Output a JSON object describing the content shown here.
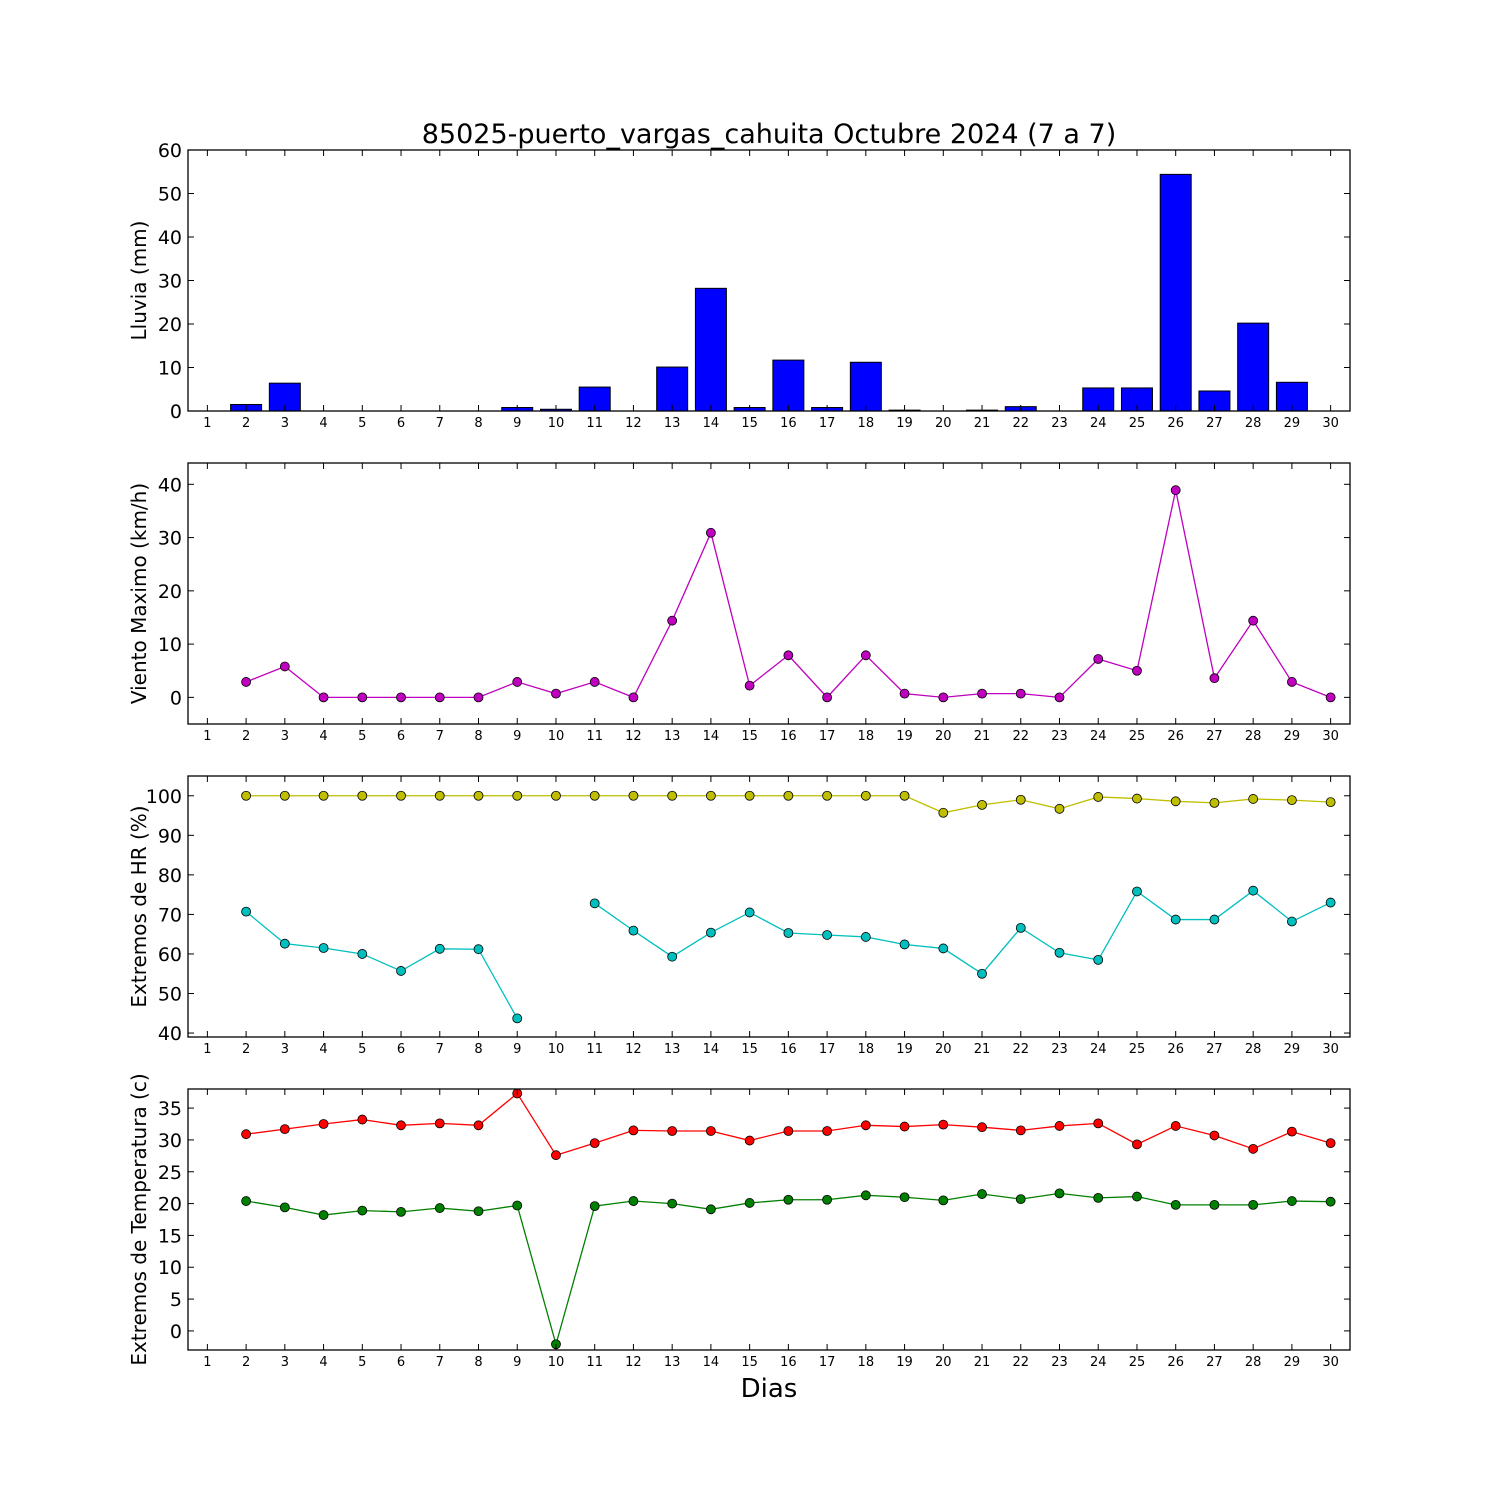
{
  "figure": {
    "title": "85025-puerto_vargas_cahuita Octubre 2024  (7 a 7)",
    "xlabel": "Dias"
  },
  "chart_data": [
    {
      "type": "bar",
      "ylabel": "Lluvia (mm)",
      "ylim": [
        0,
        60
      ],
      "yticks": [
        0,
        10,
        20,
        30,
        40,
        50,
        60
      ],
      "grid": false,
      "categories": [
        1,
        2,
        3,
        4,
        5,
        6,
        7,
        8,
        9,
        10,
        11,
        12,
        13,
        14,
        15,
        16,
        17,
        18,
        19,
        20,
        21,
        22,
        23,
        24,
        25,
        26,
        27,
        28,
        29,
        30
      ],
      "color": "#0000ff",
      "values": [
        0,
        1.5,
        6.4,
        0,
        0,
        0,
        0,
        0,
        0.8,
        0.4,
        5.5,
        0,
        10.1,
        28.2,
        0.8,
        11.7,
        0.8,
        11.2,
        0.2,
        0,
        0.2,
        1.0,
        0,
        5.3,
        5.3,
        54.4,
        4.6,
        20.2,
        6.6,
        0
      ]
    },
    {
      "type": "line",
      "ylabel": "Viento Maximo (km/h)",
      "ylim": [
        -5,
        44
      ],
      "yticks": [
        0,
        10,
        20,
        30,
        40
      ],
      "grid": false,
      "x": [
        1,
        2,
        3,
        4,
        5,
        6,
        7,
        8,
        9,
        10,
        11,
        12,
        13,
        14,
        15,
        16,
        17,
        18,
        19,
        20,
        21,
        22,
        23,
        24,
        25,
        26,
        27,
        28,
        29,
        30
      ],
      "series": [
        {
          "color": "#bf00bf",
          "values": [
            null,
            2.9,
            5.8,
            0,
            0,
            0,
            0,
            0,
            2.9,
            0.7,
            2.9,
            0,
            14.4,
            30.9,
            2.2,
            7.9,
            0,
            7.9,
            0.7,
            0,
            0.7,
            0.7,
            0,
            7.2,
            5.0,
            38.9,
            3.6,
            14.4,
            2.9,
            0
          ]
        }
      ]
    },
    {
      "type": "line",
      "ylabel": "Extremos de HR (%)",
      "ylim": [
        39,
        105
      ],
      "yticks": [
        40,
        50,
        60,
        70,
        80,
        90,
        100
      ],
      "grid": false,
      "x": [
        1,
        2,
        3,
        4,
        5,
        6,
        7,
        8,
        9,
        10,
        11,
        12,
        13,
        14,
        15,
        16,
        17,
        18,
        19,
        20,
        21,
        22,
        23,
        24,
        25,
        26,
        27,
        28,
        29,
        30
      ],
      "series": [
        {
          "color": "#bfbf00",
          "values": [
            null,
            100,
            100,
            100,
            100,
            100,
            100,
            100,
            100,
            100,
            100,
            100,
            100,
            100,
            100,
            100,
            100,
            100,
            100,
            95.7,
            97.7,
            99.0,
            96.7,
            99.7,
            99.3,
            98.6,
            98.2,
            99.2,
            98.9,
            98.4
          ]
        },
        {
          "color": "#00bfbf",
          "values": [
            null,
            70.7,
            62.6,
            61.5,
            60.0,
            55.7,
            61.3,
            61.2,
            43.7,
            null,
            72.8,
            65.9,
            59.3,
            65.4,
            70.5,
            65.3,
            64.8,
            64.3,
            62.4,
            61.4,
            55.0,
            66.6,
            60.3,
            58.5,
            75.8,
            68.7,
            68.7,
            76.0,
            68.2,
            73.0
          ]
        }
      ]
    },
    {
      "type": "line",
      "ylabel": "Extremos de Temperatura (c)",
      "ylim": [
        -3,
        38
      ],
      "yticks": [
        0,
        5,
        10,
        15,
        20,
        25,
        30,
        35
      ],
      "grid": false,
      "x": [
        1,
        2,
        3,
        4,
        5,
        6,
        7,
        8,
        9,
        10,
        11,
        12,
        13,
        14,
        15,
        16,
        17,
        18,
        19,
        20,
        21,
        22,
        23,
        24,
        25,
        26,
        27,
        28,
        29,
        30
      ],
      "series": [
        {
          "color": "#ff0000",
          "values": [
            null,
            30.9,
            31.7,
            32.5,
            33.2,
            32.3,
            32.6,
            32.3,
            37.3,
            27.6,
            29.5,
            31.5,
            31.4,
            31.4,
            29.9,
            31.4,
            31.4,
            32.3,
            32.1,
            32.4,
            32.0,
            31.5,
            32.2,
            32.6,
            29.3,
            32.2,
            30.7,
            28.6,
            31.3,
            29.5
          ]
        },
        {
          "color": "#008000",
          "values": [
            null,
            20.4,
            19.4,
            18.2,
            18.9,
            18.7,
            19.3,
            18.8,
            19.7,
            -2.1,
            19.6,
            20.4,
            20.0,
            19.1,
            20.1,
            20.6,
            20.6,
            21.3,
            21.0,
            20.5,
            21.5,
            20.7,
            21.6,
            20.9,
            21.1,
            19.8,
            19.8,
            19.8,
            20.4,
            20.3
          ]
        }
      ]
    }
  ]
}
